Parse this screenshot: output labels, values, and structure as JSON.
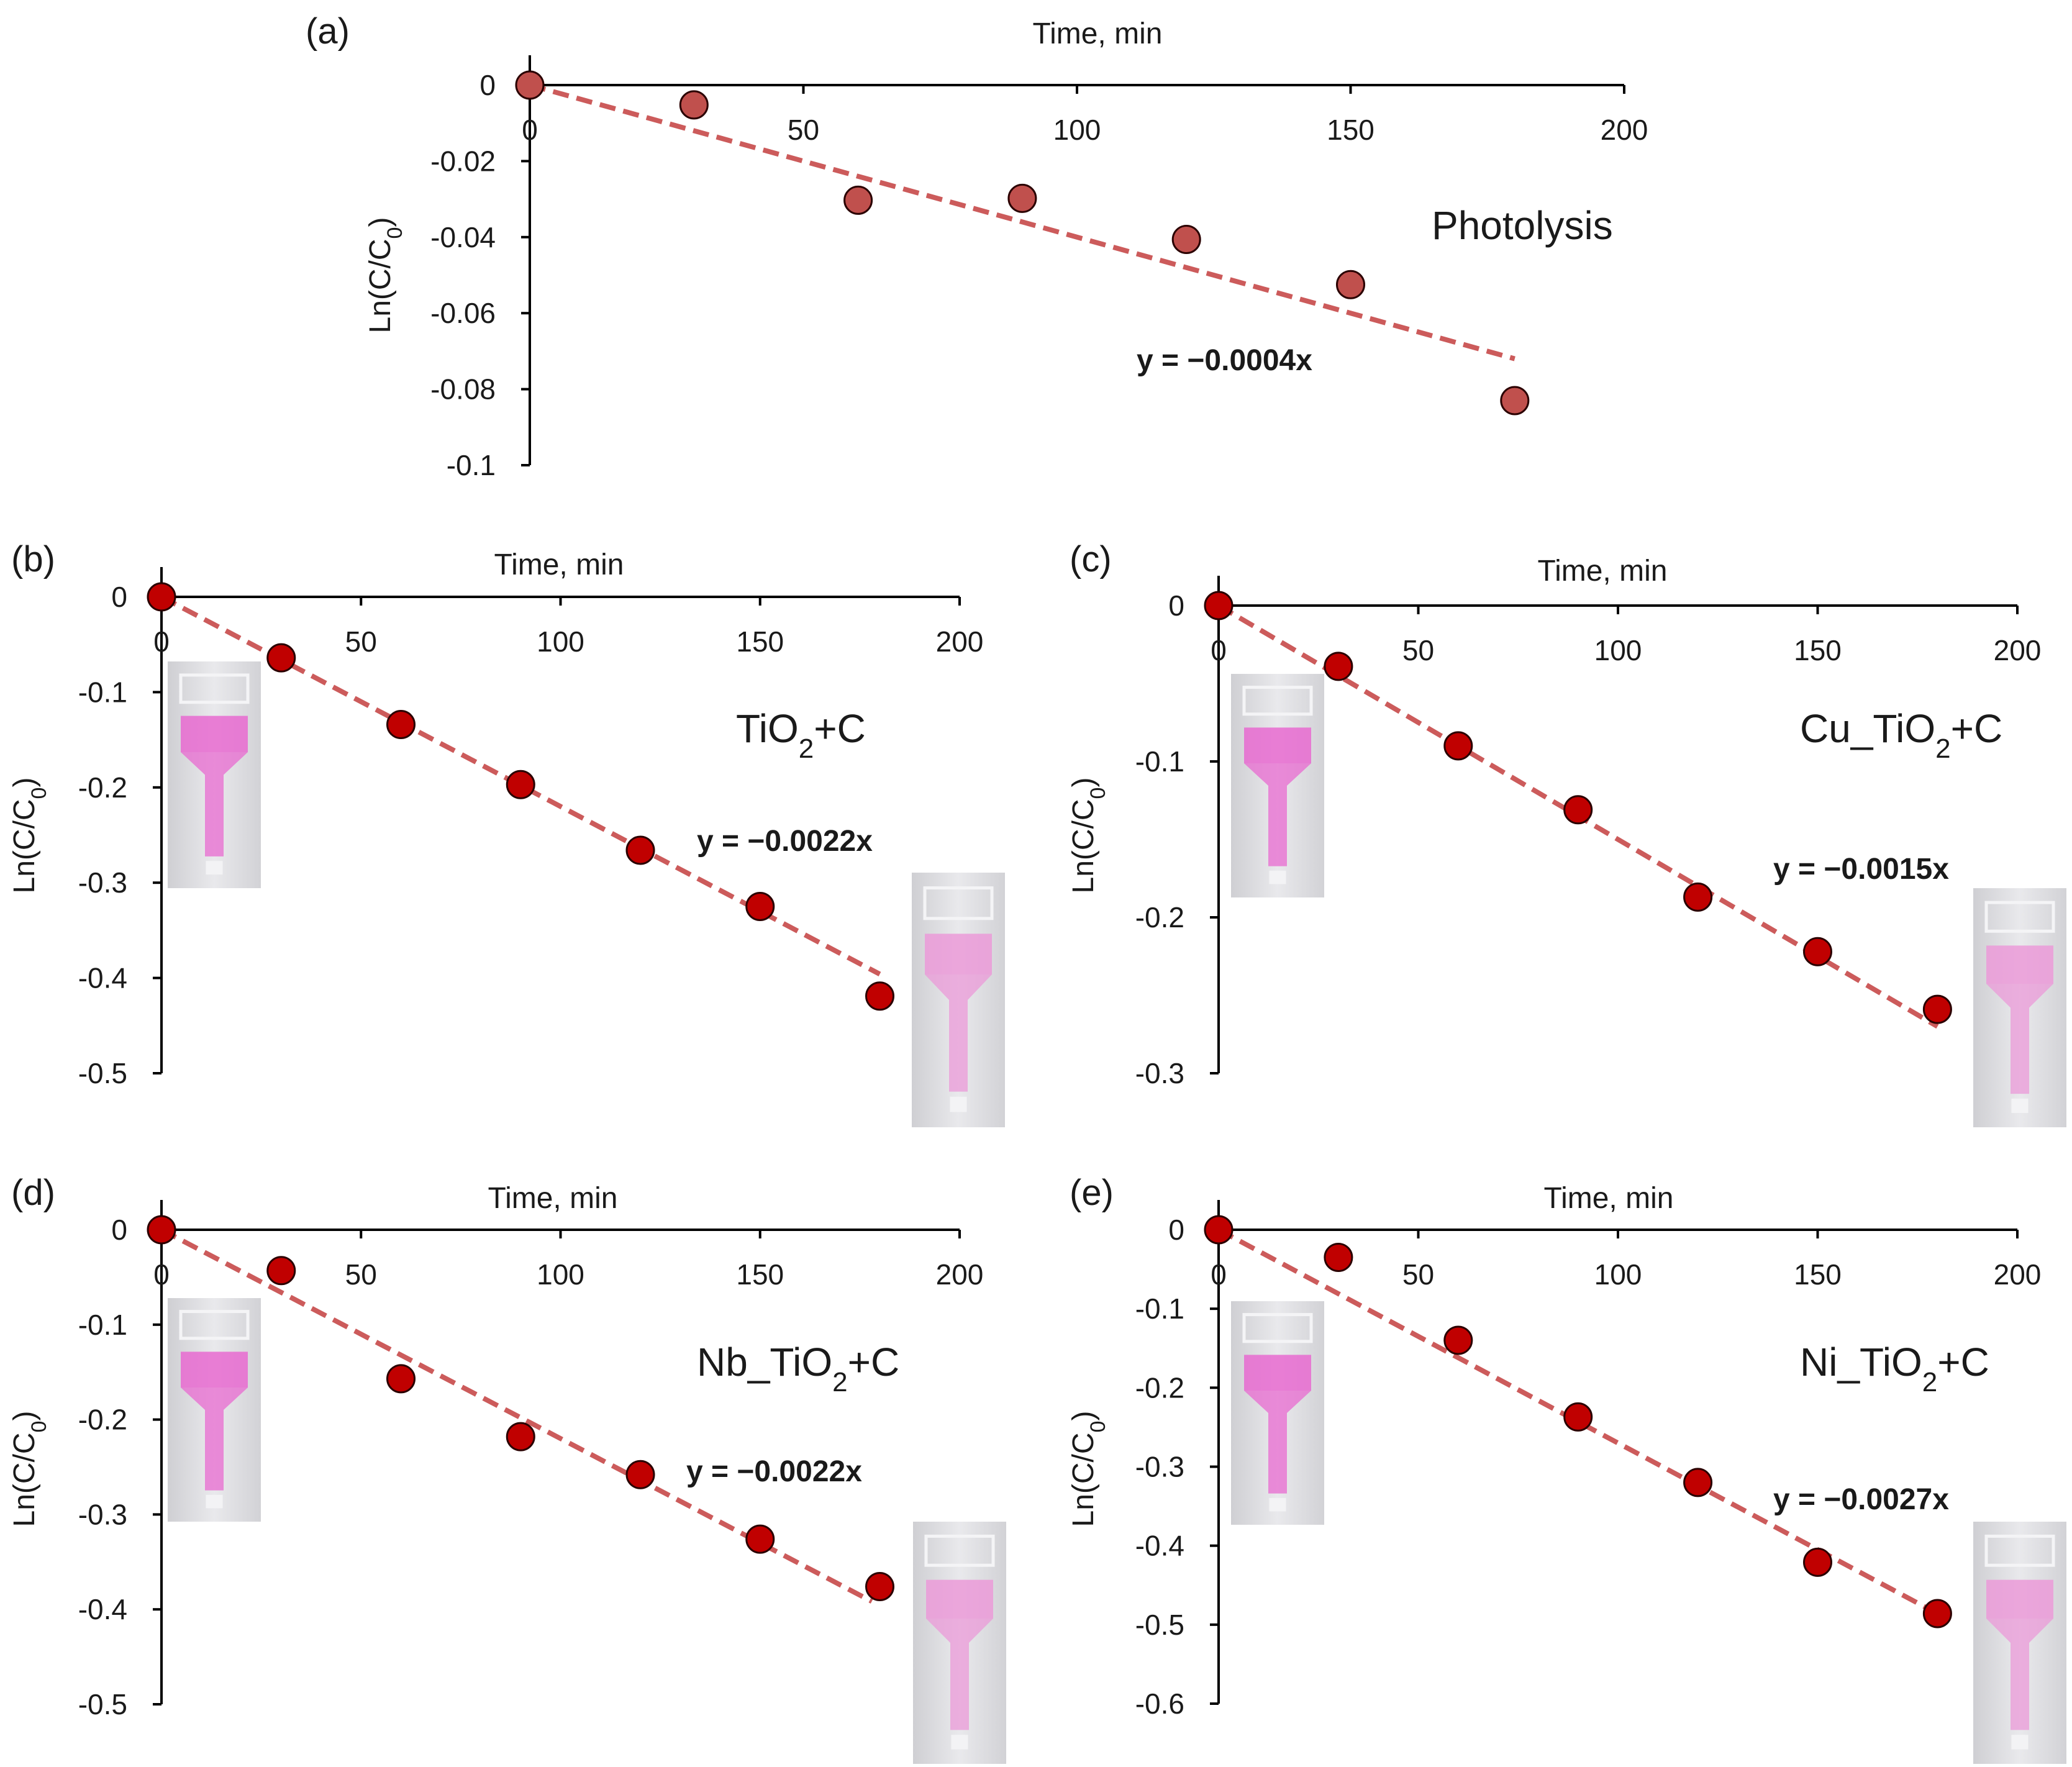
{
  "chart_data": [
    {
      "id": "a",
      "type": "scatter",
      "panel_label": "(a)",
      "xlabel": "Time, min",
      "ylabel_main": "Ln(C/C",
      "ylabel_sub": "0",
      "ylabel_end": ")",
      "xlim": [
        0,
        200
      ],
      "ylim": [
        -0.1,
        0
      ],
      "xticks": [
        0,
        50,
        100,
        150,
        200
      ],
      "yticks": [
        0,
        -0.02,
        -0.04,
        -0.06,
        -0.08,
        -0.1
      ],
      "ytick_labels": [
        "0",
        "-0.02",
        "-0.04",
        "-0.06",
        "-0.08",
        "-0.1"
      ],
      "series_label_main": "Photolysis",
      "series_label_sub": "",
      "series_label_end": "",
      "x": [
        0,
        30,
        60,
        90,
        120,
        150,
        180
      ],
      "y": [
        0,
        -0.0052,
        -0.0303,
        -0.0298,
        -0.0406,
        -0.0525,
        -0.083
      ],
      "trend_slope": -0.0004,
      "trend_x_end": 180,
      "equation": "y = −0.0004x",
      "marker_color": "#c0504d",
      "trend_color": "#cc5b5b",
      "has_inset_images": false
    },
    {
      "id": "b",
      "type": "scatter",
      "panel_label": "(b)",
      "xlabel": "Time, min",
      "ylabel_main": "Ln(C/C",
      "ylabel_sub": "0",
      "ylabel_end": ")",
      "xlim": [
        0,
        200
      ],
      "ylim": [
        -0.5,
        0
      ],
      "xticks": [
        0,
        50,
        100,
        150,
        200
      ],
      "yticks": [
        0,
        -0.1,
        -0.2,
        -0.3,
        -0.4,
        -0.5
      ],
      "ytick_labels": [
        "0",
        "-0.1",
        "-0.2",
        "-0.3",
        "-0.4",
        "-0.5"
      ],
      "series_label_main": "TiO",
      "series_label_sub": "2",
      "series_label_end": "+C",
      "x": [
        0,
        30,
        60,
        90,
        120,
        150,
        180
      ],
      "y": [
        0,
        -0.064,
        -0.134,
        -0.197,
        -0.266,
        -0.325,
        -0.419
      ],
      "trend_slope": -0.0022,
      "trend_x_end": 180,
      "equation": "y = −0.0022x",
      "marker_color": "#c00000",
      "trend_color": "#cc5b5b",
      "has_inset_images": true
    },
    {
      "id": "c",
      "type": "scatter",
      "panel_label": "(c)",
      "xlabel": "Time, min",
      "ylabel_main": "Ln(C/C",
      "ylabel_sub": "0",
      "ylabel_end": ")",
      "xlim": [
        0,
        200
      ],
      "ylim": [
        -0.3,
        0
      ],
      "xticks": [
        0,
        50,
        100,
        150,
        200
      ],
      "yticks": [
        0,
        -0.1,
        -0.2,
        -0.3
      ],
      "ytick_labels": [
        "0",
        "-0.1",
        "-0.2",
        "-0.3"
      ],
      "series_label_main": "Cu_TiO",
      "series_label_sub": "2",
      "series_label_end": "+C",
      "x": [
        0,
        30,
        60,
        90,
        120,
        150,
        180
      ],
      "y": [
        0,
        -0.039,
        -0.09,
        -0.131,
        -0.187,
        -0.222,
        -0.259
      ],
      "trend_slope": -0.0015,
      "trend_x_end": 180,
      "equation": "y = −0.0015x",
      "marker_color": "#c00000",
      "trend_color": "#cc5b5b",
      "has_inset_images": true
    },
    {
      "id": "d",
      "type": "scatter",
      "panel_label": "(d)",
      "xlabel": "Time, min",
      "ylabel_main": "Ln(C/C",
      "ylabel_sub": "0",
      "ylabel_end": ")",
      "xlim": [
        0,
        200
      ],
      "ylim": [
        -0.5,
        0
      ],
      "xticks": [
        0,
        50,
        100,
        150,
        200
      ],
      "yticks": [
        0,
        -0.1,
        -0.2,
        -0.3,
        -0.4,
        -0.5
      ],
      "ytick_labels": [
        "0",
        "-0.1",
        "-0.2",
        "-0.3",
        "-0.4",
        "-0.5"
      ],
      "series_label_main": "Nb_TiO",
      "series_label_sub": "2",
      "series_label_end": "+C",
      "x": [
        0,
        30,
        60,
        90,
        120,
        150,
        180
      ],
      "y": [
        0,
        -0.043,
        -0.157,
        -0.218,
        -0.258,
        -0.326,
        -0.376
      ],
      "trend_slope": -0.0022,
      "trend_x_end": 178,
      "equation": "y = −0.0022x",
      "marker_color": "#c00000",
      "trend_color": "#cc5b5b",
      "has_inset_images": true
    },
    {
      "id": "e",
      "type": "scatter",
      "panel_label": "(e)",
      "xlabel": "Time, min",
      "ylabel_main": "Ln(C/C",
      "ylabel_sub": "0",
      "ylabel_end": ")",
      "xlim": [
        0,
        200
      ],
      "ylim": [
        -0.6,
        0
      ],
      "xticks": [
        0,
        50,
        100,
        150,
        200
      ],
      "yticks": [
        0,
        -0.1,
        -0.2,
        -0.3,
        -0.4,
        -0.5,
        -0.6
      ],
      "ytick_labels": [
        "0",
        "-0.1",
        "-0.2",
        "-0.3",
        "-0.4",
        "-0.5",
        "-0.6"
      ],
      "series_label_main": "Ni_TiO",
      "series_label_sub": "2",
      "series_label_end": "+C",
      "x": [
        0,
        30,
        60,
        90,
        120,
        150,
        180
      ],
      "y": [
        0,
        -0.035,
        -0.14,
        -0.237,
        -0.32,
        -0.421,
        -0.486
      ],
      "trend_slope": -0.0027,
      "trend_x_end": 180,
      "equation": "y = −0.0027x",
      "marker_color": "#c00000",
      "trend_color": "#cc5b5b",
      "has_inset_images": true
    }
  ]
}
